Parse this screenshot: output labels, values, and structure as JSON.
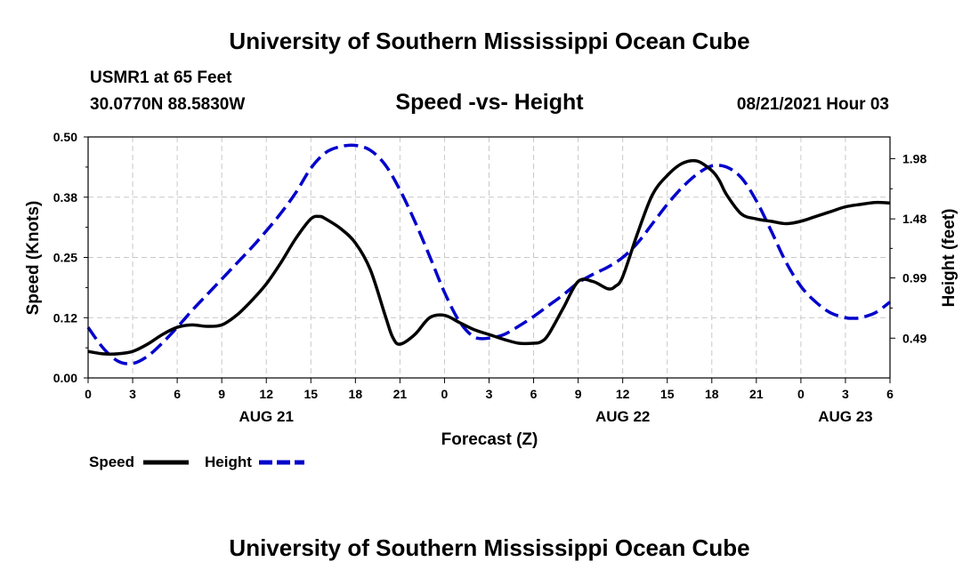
{
  "page": {
    "top_title": "University of Southern Mississippi Ocean Cube",
    "bottom_title": "University of Southern Mississippi Ocean Cube",
    "station": "USMR1 at 65 Feet",
    "location": "30.0770N  88.5830W",
    "subtitle": "Speed -vs- Height",
    "datetime": "08/21/2021 Hour 03"
  },
  "chart_data": {
    "type": "line",
    "title": "Speed -vs- Height",
    "xlabel": "Forecast (Z)",
    "ylabel": "Speed (Knots)",
    "y2label": "Height (feet)",
    "x_range": [
      0,
      54
    ],
    "ylim": [
      0,
      0.5
    ],
    "y2lim": [
      0.16,
      2.16
    ],
    "grid": true,
    "legend_position": "bottom-left",
    "x_ticks": [
      {
        "x": 0,
        "label": "0"
      },
      {
        "x": 3,
        "label": "3"
      },
      {
        "x": 6,
        "label": "6"
      },
      {
        "x": 9,
        "label": "9"
      },
      {
        "x": 12,
        "label": "12"
      },
      {
        "x": 15,
        "label": "15"
      },
      {
        "x": 18,
        "label": "18"
      },
      {
        "x": 21,
        "label": "21"
      },
      {
        "x": 24,
        "label": "0"
      },
      {
        "x": 27,
        "label": "3"
      },
      {
        "x": 30,
        "label": "6"
      },
      {
        "x": 33,
        "label": "9"
      },
      {
        "x": 36,
        "label": "12"
      },
      {
        "x": 39,
        "label": "15"
      },
      {
        "x": 42,
        "label": "18"
      },
      {
        "x": 45,
        "label": "21"
      },
      {
        "x": 48,
        "label": "0"
      },
      {
        "x": 51,
        "label": "3"
      },
      {
        "x": 54,
        "label": "6"
      }
    ],
    "date_labels": [
      {
        "x": 12,
        "label": "AUG 21"
      },
      {
        "x": 36,
        "label": "AUG 22"
      },
      {
        "x": 51,
        "label": "AUG 23"
      }
    ],
    "y_ticks": [
      {
        "value": 0.0,
        "label": "0.00"
      },
      {
        "value": 0.125,
        "label": "0.12"
      },
      {
        "value": 0.25,
        "label": "0.25"
      },
      {
        "value": 0.375,
        "label": "0.38"
      },
      {
        "value": 0.5,
        "label": "0.50"
      }
    ],
    "y2_ticks": [
      {
        "value": 0.49,
        "label": "0.49"
      },
      {
        "value": 0.99,
        "label": "0.99"
      },
      {
        "value": 1.48,
        "label": "1.48"
      },
      {
        "value": 1.98,
        "label": "1.98"
      }
    ],
    "series": [
      {
        "name": "Speed",
        "axis": "left",
        "color": "#000000",
        "dash": "solid",
        "x": [
          0,
          1,
          2,
          3,
          4,
          5,
          6,
          7,
          8,
          9,
          10,
          11,
          12,
          13,
          14,
          15,
          15.6,
          16,
          17,
          18,
          19,
          20,
          20.5,
          21,
          22,
          23,
          24,
          25,
          26,
          27,
          28,
          29,
          30,
          30.5,
          31,
          32,
          33,
          34,
          35,
          35.5,
          36,
          37,
          38,
          39,
          40,
          41,
          42,
          42.5,
          43,
          44,
          45,
          46,
          47,
          48,
          49,
          50,
          51,
          52,
          53,
          54
        ],
        "values": [
          0.055,
          0.05,
          0.05,
          0.055,
          0.07,
          0.09,
          0.105,
          0.11,
          0.107,
          0.11,
          0.13,
          0.16,
          0.195,
          0.24,
          0.29,
          0.33,
          0.335,
          0.33,
          0.31,
          0.28,
          0.225,
          0.13,
          0.085,
          0.07,
          0.09,
          0.125,
          0.13,
          0.115,
          0.1,
          0.09,
          0.08,
          0.072,
          0.072,
          0.075,
          0.09,
          0.145,
          0.2,
          0.2,
          0.185,
          0.19,
          0.21,
          0.3,
          0.38,
          0.42,
          0.445,
          0.45,
          0.43,
          0.41,
          0.38,
          0.34,
          0.33,
          0.325,
          0.32,
          0.325,
          0.335,
          0.345,
          0.355,
          0.36,
          0.364,
          0.363
        ]
      },
      {
        "name": "Height",
        "axis": "right",
        "color": "#0000cc",
        "dash": "dashed",
        "x": [
          0,
          1,
          2,
          3,
          4,
          5,
          6,
          7,
          8,
          9,
          10,
          11,
          12,
          13,
          14,
          15,
          16,
          17,
          18,
          19,
          20,
          21,
          22,
          23,
          24,
          25,
          26,
          27,
          28,
          29,
          30,
          31,
          32,
          33,
          34,
          35,
          36,
          37,
          38,
          39,
          40,
          41,
          42,
          43,
          44,
          45,
          46,
          47,
          48,
          49,
          50,
          51,
          51.5,
          52,
          53,
          54
        ],
        "values": [
          0.58,
          0.41,
          0.3,
          0.28,
          0.34,
          0.45,
          0.58,
          0.72,
          0.85,
          0.98,
          1.11,
          1.24,
          1.38,
          1.53,
          1.7,
          1.9,
          2.03,
          2.08,
          2.09,
          2.05,
          1.93,
          1.72,
          1.46,
          1.17,
          0.87,
          0.63,
          0.5,
          0.49,
          0.52,
          0.59,
          0.67,
          0.76,
          0.85,
          0.95,
          1.02,
          1.08,
          1.16,
          1.28,
          1.44,
          1.6,
          1.74,
          1.85,
          1.92,
          1.91,
          1.82,
          1.63,
          1.38,
          1.12,
          0.92,
          0.79,
          0.7,
          0.66,
          0.655,
          0.66,
          0.7,
          0.79
        ]
      }
    ]
  }
}
